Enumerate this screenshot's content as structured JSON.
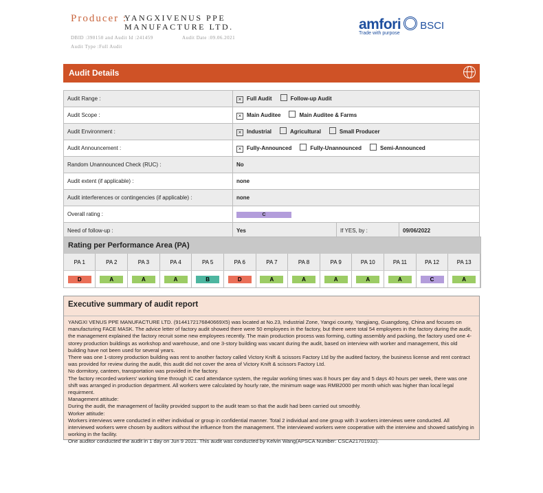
{
  "producer": {
    "label": "Producer :",
    "name": "YANGXIVENUS PPE MANUFACTURE LTD.",
    "dbid_line": "DBID :390150 and Audit Id :241459",
    "audit_date": "Audit Date :09.06.2021",
    "audit_type": "Audit Type :Full Audit"
  },
  "logo": {
    "brand": "amfori",
    "program": "BSCI",
    "tagline": "Trade with purpose"
  },
  "audit_details": {
    "title": "Audit Details",
    "icon": "globe-icon",
    "rows": [
      {
        "label": "Audit Range :",
        "options": [
          {
            "text": "Full Audit",
            "checked": true
          },
          {
            "text": "Follow-up Audit",
            "checked": false
          }
        ]
      },
      {
        "label": "Audit Scope :",
        "options": [
          {
            "text": "Main Auditee",
            "checked": true
          },
          {
            "text": "Main Auditee & Farms",
            "checked": false
          }
        ]
      },
      {
        "label": "Audit Environment :",
        "options": [
          {
            "text": "Industrial",
            "checked": true
          },
          {
            "text": "Agricultural",
            "checked": false
          },
          {
            "text": "Small Producer",
            "checked": false
          }
        ]
      },
      {
        "label": "Audit Announcement :",
        "options": [
          {
            "text": "Fully-Announced",
            "checked": true
          },
          {
            "text": "Fully-Unannounced",
            "checked": false
          },
          {
            "text": "Semi-Announced",
            "checked": false
          }
        ]
      }
    ],
    "ruc": {
      "label": "Random Unannounced Check (RUC) :",
      "value": "No"
    },
    "extent": {
      "label": "Audit extent (if applicable) :",
      "value": "none"
    },
    "interferences": {
      "label": "Audit interferences or contingencies (if applicable) :",
      "value": "none"
    },
    "overall": {
      "label": "Overall rating :",
      "value": "C"
    },
    "followup": {
      "label": "Need of follow-up :",
      "value": "Yes",
      "by_label": "If YES, by :",
      "by_value": "09/06/2022"
    }
  },
  "pa": {
    "title": "Rating per Performance Area (PA)",
    "areas": [
      {
        "label": "PA 1",
        "grade": "D"
      },
      {
        "label": "PA 2",
        "grade": "A"
      },
      {
        "label": "PA 3",
        "grade": "A"
      },
      {
        "label": "PA 4",
        "grade": "A"
      },
      {
        "label": "PA 5",
        "grade": "B"
      },
      {
        "label": "PA 6",
        "grade": "D"
      },
      {
        "label": "PA 7",
        "grade": "A"
      },
      {
        "label": "PA 8",
        "grade": "A"
      },
      {
        "label": "PA 9",
        "grade": "A"
      },
      {
        "label": "PA 10",
        "grade": "A"
      },
      {
        "label": "PA 11",
        "grade": "A"
      },
      {
        "label": "PA 12",
        "grade": "C"
      },
      {
        "label": "PA 13",
        "grade": "A"
      }
    ],
    "colors": {
      "A": "#9ccc65",
      "B": "#4db6a0",
      "C": "#b39ddb",
      "D": "#ea6f58"
    }
  },
  "summary": {
    "title": "Executive summary of audit report",
    "paragraphs": [
      "YANGXI VENUS PPE MANUFACTURE LTD. (91441721768406​69X5) was located at No.23, Industrial Zone, Yangxi county, Yangjiang, Guangdong, China and focuses on manufacturing FACE MASK. The advice letter of factory audit showed there were 50 employees in the factory, but there were total 54 employees in the factory during the audit, the management explained the factory recruit some new employees recently. The main production process was forming, cutting assembly and packing, the factory used one 4-storey production buildings as workshop and warehouse, and one 3-story building was vacant during the audit, based on interview with worker and management, this old building have not been used for several years.",
      "There was one 1-storey production building was rent to another factory called Victory Knift & scissors Factory Ltd by the audited factory, the business license and rent contract was provided for review during the audit, this audit did not cover the area of Victory Knift & scissors Factory Ltd.",
      "No dormitory, canteen, transportation was provided in the factory.",
      "The factory recorded workers' working time through IC card attendance system, the regular working times was 8 hours per day and 5 days 40 hours per week, there was one shift was arranged in production department. All workers were calculated by hourly rate, the minimum wage was RMB2000 per month which was higher than local legal requirment.",
      "Management attitude:",
      "During the audit, the management of facility provided support to the audit team so that the audit had been carried out smoothly.",
      "Worker attitude:",
      "Workers interviews were conducted in either individual or group in confidential manner. Total 2 individual and one group with 3 workers interviews were conducted. All interviewed workers were chosen by auditors without the influence from the management. The interviewed workers were cooperative with the interview and showed satisfying in working in the facility.",
      "One auditor conducted the audit in 1 day on Jun 9 2021. This audit was conducted by Kelvin Wang(APSCA Number: CSCA21701932)."
    ]
  }
}
